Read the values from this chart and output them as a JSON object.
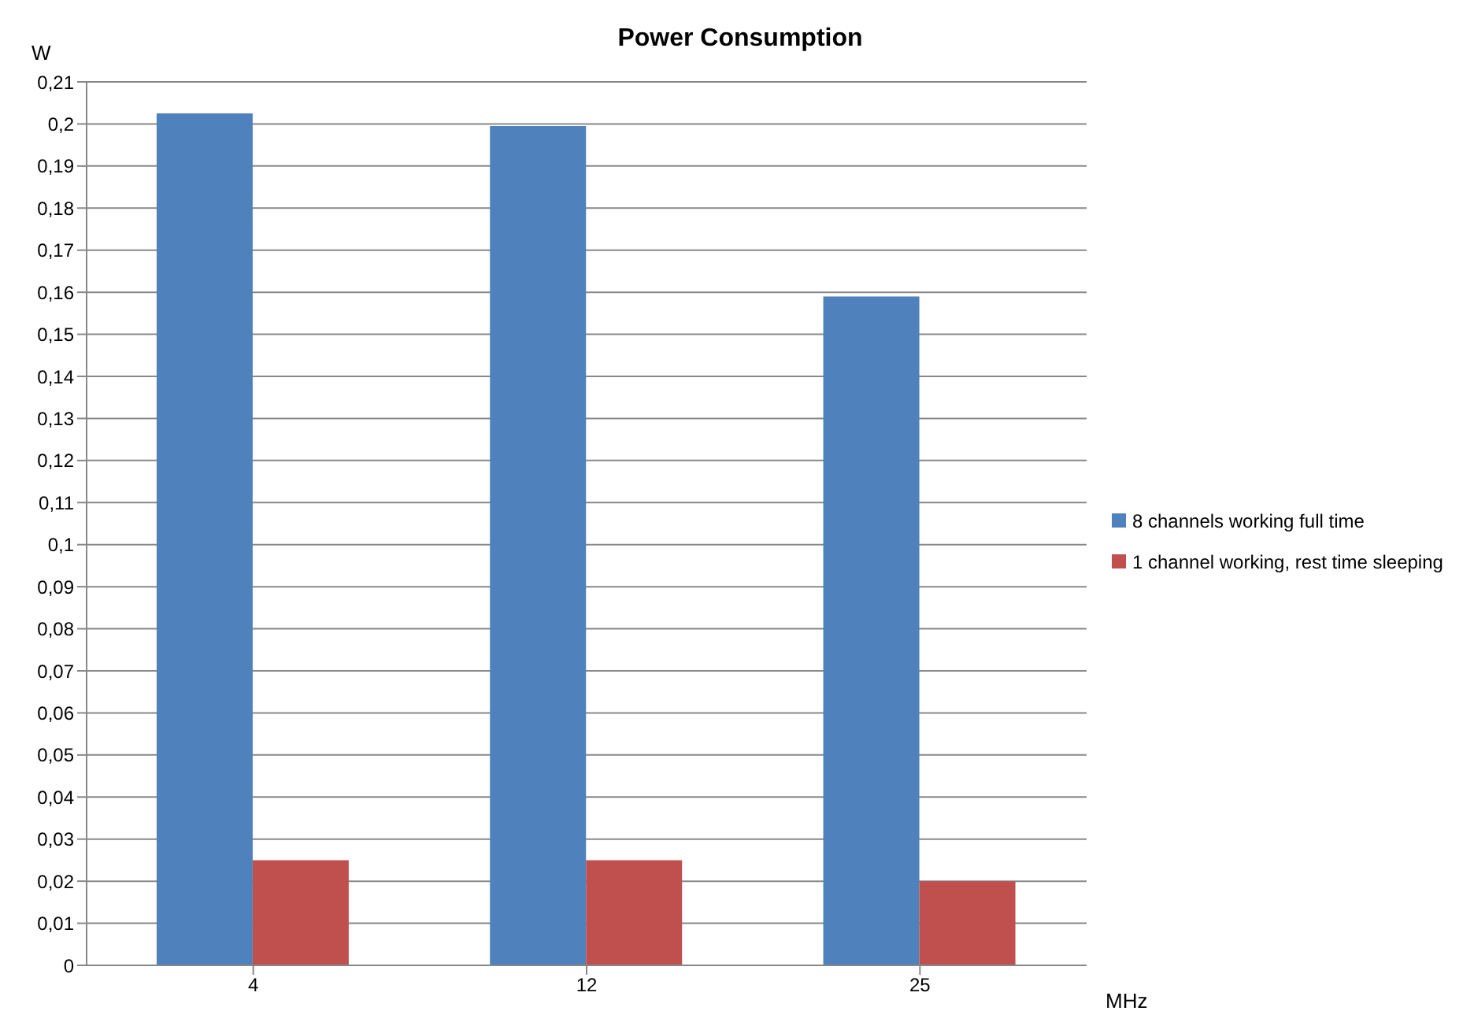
{
  "chart_data": {
    "type": "bar",
    "title": "Power Consumption",
    "ylabel": "W",
    "xlabel": "MHz",
    "categories": [
      "4",
      "12",
      "25"
    ],
    "series": [
      {
        "name": "8 channels working full time",
        "color": "#4f81bd",
        "values": [
          0.2025,
          0.1995,
          0.159
        ]
      },
      {
        "name": "1 channel working, rest time sleeping",
        "color": "#c0504d",
        "values": [
          0.025,
          0.025,
          0.02
        ]
      }
    ],
    "ylim": [
      0,
      0.21
    ],
    "yticks": [
      0,
      {
        "value": 0.01,
        "label": "0,01"
      },
      {
        "value": 0.02,
        "label": "0,02"
      },
      {
        "value": 0.03,
        "label": "0,03"
      },
      {
        "value": 0.04,
        "label": "0,04"
      },
      {
        "value": 0.05,
        "label": "0,05"
      },
      {
        "value": 0.06,
        "label": "0,06"
      },
      {
        "value": 0.07,
        "label": "0,07"
      },
      {
        "value": 0.08,
        "label": "0,08"
      },
      {
        "value": 0.09,
        "label": "0,09"
      },
      {
        "value": 0.1,
        "label": "0,1"
      },
      {
        "value": 0.11,
        "label": "0,11"
      },
      {
        "value": 0.12,
        "label": "0,12"
      },
      {
        "value": 0.13,
        "label": "0,13"
      },
      {
        "value": 0.14,
        "label": "0,14"
      },
      {
        "value": 0.15,
        "label": "0,15"
      },
      {
        "value": 0.16,
        "label": "0,16"
      },
      {
        "value": 0.17,
        "label": "0,17"
      },
      {
        "value": 0.18,
        "label": "0,18"
      },
      {
        "value": 0.19,
        "label": "0,19"
      },
      {
        "value": 0.2,
        "label": "0,2"
      },
      {
        "value": 0.21,
        "label": "0,21"
      }
    ],
    "grid": "y",
    "legend": "right"
  }
}
